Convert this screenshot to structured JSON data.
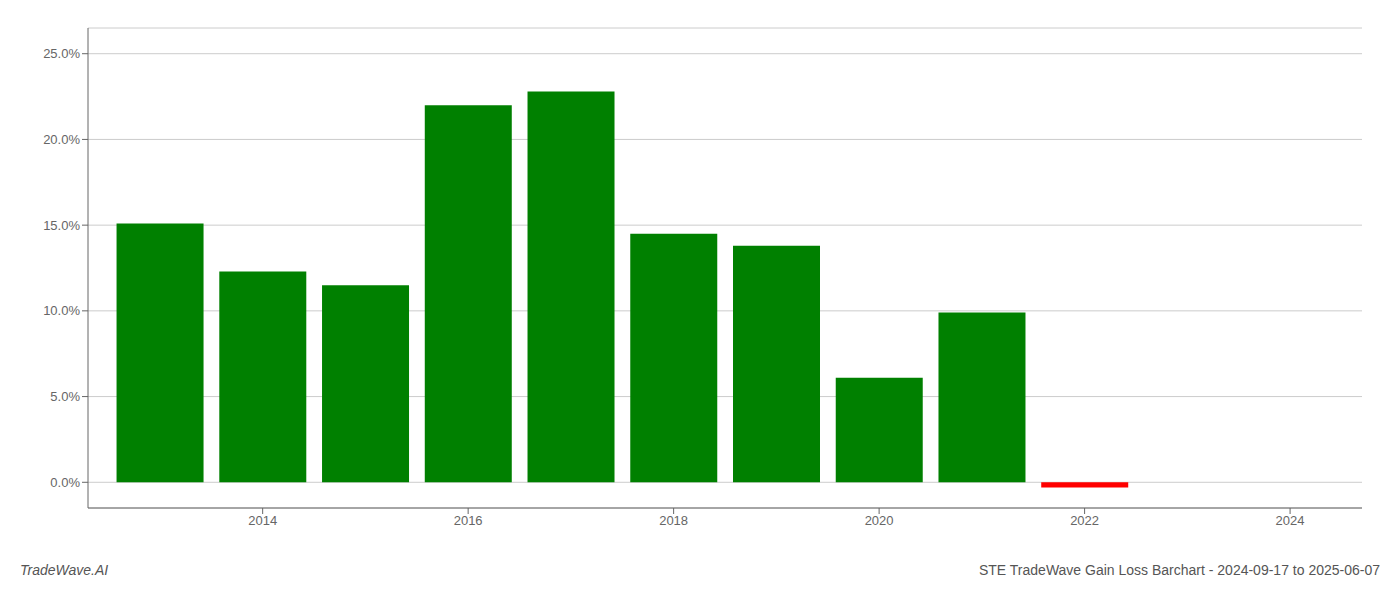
{
  "chart_data": {
    "type": "bar",
    "x": [
      2013,
      2014,
      2015,
      2016,
      2017,
      2018,
      2019,
      2020,
      2021,
      2022,
      2023
    ],
    "values": [
      0.151,
      0.123,
      0.115,
      0.22,
      0.228,
      0.145,
      0.138,
      0.061,
      0.099,
      -0.003,
      0.0
    ],
    "colors": [
      "#008000",
      "#008000",
      "#008000",
      "#008000",
      "#008000",
      "#008000",
      "#008000",
      "#008000",
      "#008000",
      "#ff0000",
      "#ffffff"
    ],
    "xlim": [
      2012.3,
      2024.7
    ],
    "xticks": [
      2014,
      2016,
      2018,
      2020,
      2022,
      2024
    ],
    "ylim": [
      -0.015,
      0.265
    ],
    "yticks": [
      {
        "value": 0.0,
        "label": "0.0%"
      },
      {
        "value": 0.05,
        "label": "5.0%"
      },
      {
        "value": 0.1,
        "label": "10.0%"
      },
      {
        "value": 0.15,
        "label": "15.0%"
      },
      {
        "value": 0.2,
        "label": "20.0%"
      },
      {
        "value": 0.25,
        "label": "25.0%"
      }
    ],
    "grid": true,
    "annotations": [
      "TradeWave.AI",
      "STE TradeWave Gain Loss Barchart - 2024-09-17 to 2025-06-07"
    ]
  }
}
